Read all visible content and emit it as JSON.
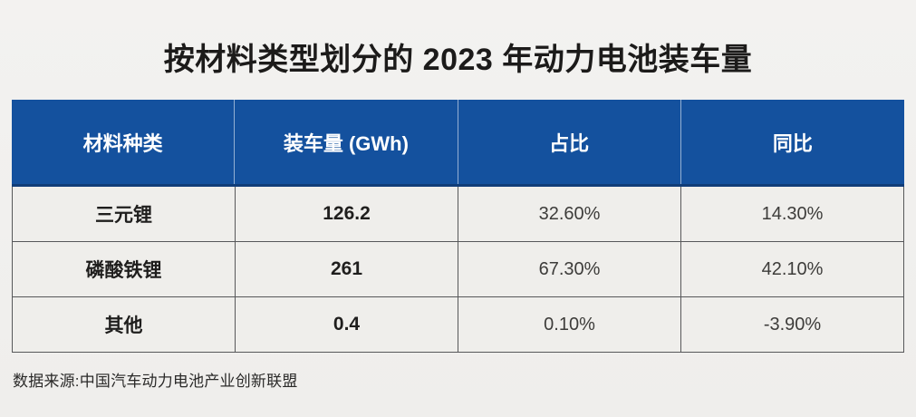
{
  "title": "按材料类型划分的 2023 年动力电池装车量",
  "table": {
    "headers": [
      "材料种类",
      "装车量 (GWh)",
      "占比",
      "同比"
    ],
    "rows": [
      {
        "material": "三元锂",
        "volume": "126.2",
        "share": "32.60%",
        "yoy": "14.30%"
      },
      {
        "material": "磷酸铁锂",
        "volume": "261",
        "share": "67.30%",
        "yoy": "42.10%"
      },
      {
        "material": "其他",
        "volume": "0.4",
        "share": "0.10%",
        "yoy": "-3.90%"
      }
    ]
  },
  "source": "数据来源:中国汽车动力电池产业创新联盟",
  "colors": {
    "header_bg": "#14519e",
    "header_text": "#ffffff",
    "header_divider_dark": "#113d78",
    "row_bg": "#efeeeb",
    "body_border": "#57585a",
    "page_bg": "#f1f0ee"
  },
  "chart_data": {
    "type": "table",
    "title": "按材料类型划分的 2023 年动力电池装车量",
    "columns": [
      "材料种类",
      "装车量 (GWh)",
      "占比",
      "同比"
    ],
    "rows": [
      [
        "三元锂",
        126.2,
        "32.60%",
        "14.30%"
      ],
      [
        "磷酸铁锂",
        261,
        "67.30%",
        "42.10%"
      ],
      [
        "其他",
        0.4,
        "0.10%",
        "-3.90%"
      ]
    ],
    "units": {
      "装车量": "GWh"
    },
    "source": "数据来源:中国汽车动力电池产业创新联盟"
  }
}
